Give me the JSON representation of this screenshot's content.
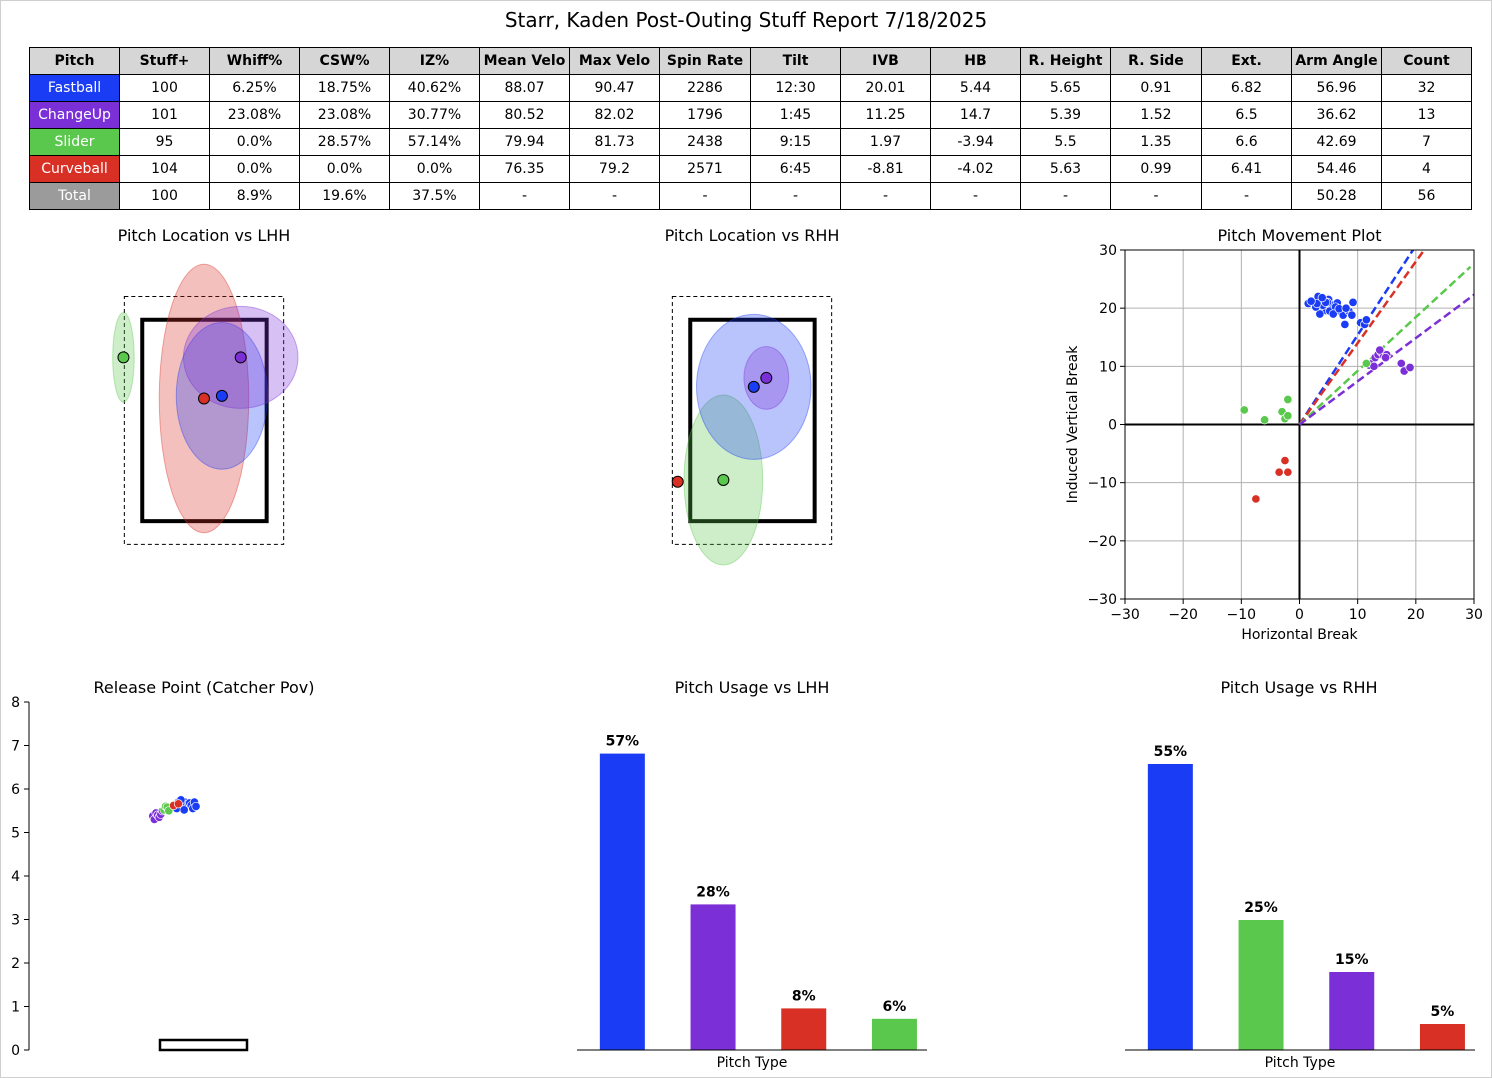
{
  "report_title": "Starr, Kaden Post-Outing Stuff Report 7/18/2025",
  "colors": {
    "Fastball": "#1a3cf5",
    "ChangeUp": "#7b2fd6",
    "Slider": "#5ac84c",
    "Curveball": "#d93025",
    "Total": "#9b9b9b"
  },
  "table": {
    "columns": [
      "Pitch",
      "Stuff+",
      "Whiff%",
      "CSW%",
      "IZ%",
      "Mean Velo",
      "Max Velo",
      "Spin Rate",
      "Tilt",
      "IVB",
      "HB",
      "R. Height",
      "R. Side",
      "Ext.",
      "Arm Angle",
      "Count"
    ],
    "rows": [
      [
        "Fastball",
        "100",
        "6.25%",
        "18.75%",
        "40.62%",
        "88.07",
        "90.47",
        "2286",
        "12:30",
        "20.01",
        "5.44",
        "5.65",
        "0.91",
        "6.82",
        "56.96",
        "32"
      ],
      [
        "ChangeUp",
        "101",
        "23.08%",
        "23.08%",
        "30.77%",
        "80.52",
        "82.02",
        "1796",
        "1:45",
        "11.25",
        "14.7",
        "5.39",
        "1.52",
        "6.5",
        "36.62",
        "13"
      ],
      [
        "Slider",
        "95",
        "0.0%",
        "28.57%",
        "57.14%",
        "79.94",
        "81.73",
        "2438",
        "9:15",
        "1.97",
        "-3.94",
        "5.5",
        "1.35",
        "6.6",
        "42.69",
        "7"
      ],
      [
        "Curveball",
        "104",
        "0.0%",
        "0.0%",
        "0.0%",
        "76.35",
        "79.2",
        "2571",
        "6:45",
        "-8.81",
        "-4.02",
        "5.63",
        "0.99",
        "6.41",
        "54.46",
        "4"
      ],
      [
        "Total",
        "100",
        "8.9%",
        "19.6%",
        "37.5%",
        "-",
        "-",
        "-",
        "-",
        "-",
        "-",
        "-",
        "-",
        "-",
        "50.28",
        "56"
      ]
    ]
  },
  "chart_data": [
    {
      "type": "scatter",
      "title": "Pitch Location vs LHH",
      "units": "feet (plate_x, plate_z)",
      "points": [
        {
          "pitch": "Slider",
          "x": -0.9,
          "z": 2.7,
          "sx": 0.12,
          "sz": 0.5
        },
        {
          "pitch": "Curveball",
          "x": 0.0,
          "z": 2.24,
          "sx": 0.5,
          "sz": 1.5
        },
        {
          "pitch": "Fastball",
          "x": 0.2,
          "z": 2.27,
          "sx": 0.51,
          "sz": 0.82
        },
        {
          "pitch": "ChangeUp",
          "x": 0.41,
          "z": 2.7,
          "sx": 0.64,
          "sz": 0.57
        }
      ]
    },
    {
      "type": "scatter",
      "title": "Pitch Location vs RHH",
      "units": "feet (plate_x, plate_z)",
      "points": [
        {
          "pitch": "Curveball",
          "x": -0.83,
          "z": 1.31
        },
        {
          "pitch": "Slider",
          "x": -0.32,
          "z": 1.33,
          "sx": 0.44,
          "sz": 0.95
        },
        {
          "pitch": "Fastball",
          "x": 0.02,
          "z": 2.37,
          "sx": 0.64,
          "sz": 0.81
        },
        {
          "pitch": "ChangeUp",
          "x": 0.16,
          "z": 2.47,
          "sx": 0.25,
          "sz": 0.35
        }
      ]
    },
    {
      "type": "scatter",
      "title": "Pitch Movement Plot",
      "xlabel": "Horizontal Break",
      "ylabel": "Induced Vertical Break",
      "xlim": [
        -30,
        30
      ],
      "ylim": [
        -30,
        30
      ],
      "ticks": [
        -30,
        -20,
        -10,
        0,
        10,
        20,
        30
      ],
      "tick_labels": [
        "−30",
        "−20",
        "−10",
        "0",
        "10",
        "20",
        "30"
      ],
      "grid": true,
      "arm_angle_lines": [
        {
          "pitch": "Fastball",
          "angle": 56.96
        },
        {
          "pitch": "Curveball",
          "angle": 54.46
        },
        {
          "pitch": "Slider",
          "angle": 42.69
        },
        {
          "pitch": "ChangeUp",
          "angle": 36.62
        }
      ],
      "series": [
        {
          "pitch": "Fastball",
          "points": [
            [
              1.5,
              20.8
            ],
            [
              2.5,
              21.0
            ],
            [
              3.2,
              22.0
            ],
            [
              3.8,
              21.2
            ],
            [
              4.2,
              20.0
            ],
            [
              4.6,
              19.6
            ],
            [
              5.0,
              21.5
            ],
            [
              5.5,
              20.5
            ],
            [
              6.0,
              19.8
            ],
            [
              6.5,
              20.9
            ],
            [
              7.0,
              19.5
            ],
            [
              3.5,
              19.0
            ],
            [
              5.2,
              19.5
            ],
            [
              4.0,
              20.5
            ],
            [
              6.2,
              20.2
            ],
            [
              2.8,
              20.2
            ],
            [
              3.0,
              20.8
            ],
            [
              4.8,
              21.0
            ],
            [
              7.5,
              18.8
            ],
            [
              8.5,
              19.5
            ],
            [
              9.0,
              18.8
            ],
            [
              9.2,
              21.0
            ],
            [
              10.5,
              17.5
            ],
            [
              11.2,
              17.2
            ],
            [
              11.5,
              18.0
            ],
            [
              7.8,
              17.2
            ],
            [
              5.8,
              19.0
            ],
            [
              4.5,
              21.0
            ],
            [
              2.0,
              21.2
            ],
            [
              6.8,
              19.9
            ],
            [
              8.0,
              20.0
            ],
            [
              3.9,
              21.8
            ]
          ]
        },
        {
          "pitch": "ChangeUp",
          "points": [
            [
              12.0,
              10.2
            ],
            [
              12.5,
              10.5
            ],
            [
              13.0,
              11.5
            ],
            [
              13.5,
              12.0
            ],
            [
              14.0,
              12.5
            ],
            [
              14.5,
              11.8
            ],
            [
              15.0,
              12.0
            ],
            [
              12.8,
              10.0
            ],
            [
              13.8,
              12.8
            ],
            [
              14.8,
              11.5
            ],
            [
              17.5,
              10.5
            ],
            [
              18.0,
              9.2
            ],
            [
              19.0,
              9.8
            ]
          ]
        },
        {
          "pitch": "Slider",
          "points": [
            [
              -9.5,
              2.5
            ],
            [
              -6.0,
              0.8
            ],
            [
              -3.0,
              2.2
            ],
            [
              -2.0,
              4.3
            ],
            [
              -2.5,
              1.0
            ],
            [
              -2.0,
              1.5
            ],
            [
              11.5,
              10.5
            ]
          ]
        },
        {
          "pitch": "Curveball",
          "points": [
            [
              -7.5,
              -12.8
            ],
            [
              -3.5,
              -8.2
            ],
            [
              -2.5,
              -6.2
            ],
            [
              -2.0,
              -8.2
            ]
          ]
        }
      ]
    },
    {
      "type": "scatter",
      "title": "Release Point (Catcher Pov)",
      "ylim": [
        0,
        8
      ],
      "ticks": [
        0,
        1,
        2,
        3,
        4,
        5,
        6,
        7,
        8
      ],
      "units": "feet (release_side, release_height)",
      "series": [
        {
          "pitch": "Fastball",
          "points": [
            [
              -0.9,
              5.6
            ],
            [
              -0.8,
              5.7
            ],
            [
              -0.75,
              5.62
            ],
            [
              -0.7,
              5.66
            ],
            [
              -0.65,
              5.58
            ],
            [
              -0.6,
              5.7
            ],
            [
              -0.55,
              5.64
            ],
            [
              -0.5,
              5.6
            ],
            [
              -0.45,
              5.68
            ],
            [
              -0.4,
              5.62
            ],
            [
              -0.35,
              5.55
            ],
            [
              -0.3,
              5.7
            ],
            [
              -0.85,
              5.55
            ],
            [
              -0.72,
              5.75
            ],
            [
              -0.62,
              5.52
            ],
            [
              -0.25,
              5.6
            ]
          ]
        },
        {
          "pitch": "ChangeUp",
          "points": [
            [
              -1.6,
              5.38
            ],
            [
              -1.55,
              5.3
            ],
            [
              -1.5,
              5.45
            ],
            [
              -1.45,
              5.4
            ],
            [
              -1.4,
              5.35
            ],
            [
              -1.35,
              5.42
            ],
            [
              -1.3,
              5.5
            ]
          ]
        },
        {
          "pitch": "Slider",
          "points": [
            [
              -1.25,
              5.52
            ],
            [
              -1.2,
              5.6
            ],
            [
              -1.15,
              5.58
            ],
            [
              -1.1,
              5.5
            ]
          ]
        },
        {
          "pitch": "Curveball",
          "points": [
            [
              -0.95,
              5.62
            ],
            [
              -0.8,
              5.66
            ]
          ]
        }
      ]
    },
    {
      "type": "bar",
      "title": "Pitch Usage vs LHH",
      "xlabel": "Pitch Type",
      "categories": [
        "Fastball",
        "ChangeUp",
        "Curveball",
        "Slider"
      ],
      "values": [
        57,
        28,
        8,
        6
      ],
      "value_labels": [
        "57%",
        "28%",
        "8%",
        "6%"
      ]
    },
    {
      "type": "bar",
      "title": "Pitch Usage vs RHH",
      "xlabel": "Pitch Type",
      "categories": [
        "Fastball",
        "Slider",
        "ChangeUp",
        "Curveball"
      ],
      "values": [
        55,
        25,
        15,
        5
      ],
      "value_labels": [
        "55%",
        "25%",
        "15%",
        "5%"
      ]
    }
  ]
}
